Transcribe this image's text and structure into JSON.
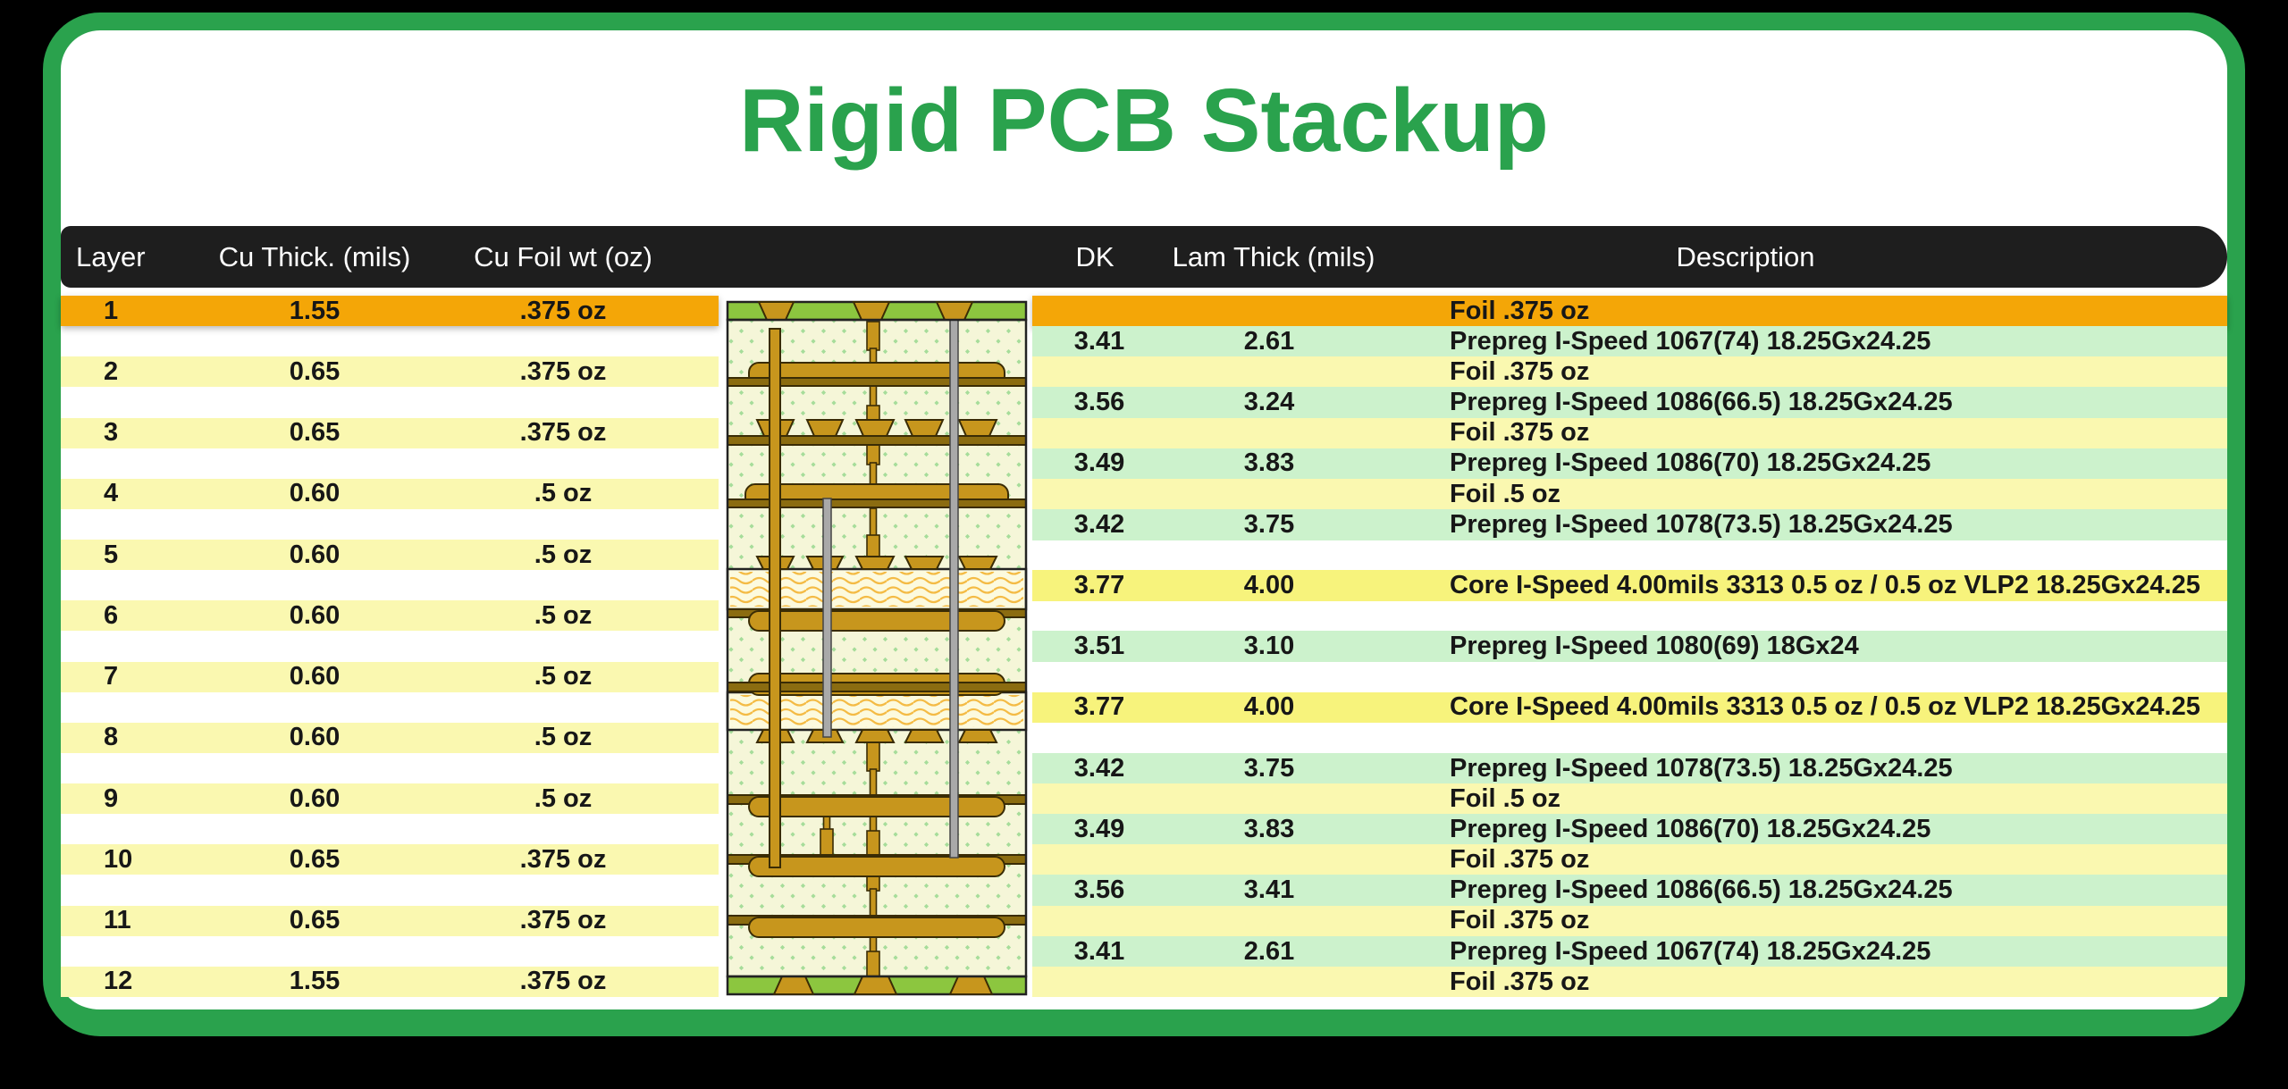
{
  "title": "Rigid PCB Stackup",
  "colors": {
    "background": "#000000",
    "card_border_green": "#2aa24d",
    "title_green": "#2aa24d",
    "header_bg": "#1e1e1e",
    "header_text": "#ffffff",
    "row_orange": "#f4a607",
    "row_yellow": "#faf8b0",
    "row_core_yellow": "#f7f37c",
    "row_green": "#ccf2cc",
    "text": "#171717"
  },
  "header": {
    "layer": "Layer",
    "cu_thick": "Cu Thick. (mils)",
    "cu_foil": "Cu Foil wt (oz)",
    "dk": "DK",
    "lam_thick": "Lam Thick (mils)",
    "description": "Description"
  },
  "left_table": {
    "rows": [
      {
        "layer": "1",
        "cu_thick": "1.55",
        "cu_foil": ".375 oz",
        "highlight": true
      },
      {
        "layer": "2",
        "cu_thick": "0.65",
        "cu_foil": ".375 oz",
        "highlight": false
      },
      {
        "layer": "3",
        "cu_thick": "0.65",
        "cu_foil": ".375 oz",
        "highlight": false
      },
      {
        "layer": "4",
        "cu_thick": "0.60",
        "cu_foil": ".5 oz",
        "highlight": false
      },
      {
        "layer": "5",
        "cu_thick": "0.60",
        "cu_foil": ".5 oz",
        "highlight": false
      },
      {
        "layer": "6",
        "cu_thick": "0.60",
        "cu_foil": ".5 oz",
        "highlight": false
      },
      {
        "layer": "7",
        "cu_thick": "0.60",
        "cu_foil": ".5 oz",
        "highlight": false
      },
      {
        "layer": "8",
        "cu_thick": "0.60",
        "cu_foil": ".5 oz",
        "highlight": false
      },
      {
        "layer": "9",
        "cu_thick": "0.60",
        "cu_foil": ".5 oz",
        "highlight": false
      },
      {
        "layer": "10",
        "cu_thick": "0.65",
        "cu_foil": ".375 oz",
        "highlight": false
      },
      {
        "layer": "11",
        "cu_thick": "0.65",
        "cu_foil": ".375 oz",
        "highlight": false
      },
      {
        "layer": "12",
        "cu_thick": "1.55",
        "cu_foil": ".375 oz",
        "highlight": false
      }
    ]
  },
  "right_table": {
    "rows": [
      {
        "type": "foil-top",
        "dk": "",
        "lam": "",
        "desc": "Foil .375 oz"
      },
      {
        "type": "prepreg",
        "dk": "3.41",
        "lam": "2.61",
        "desc": "Prepreg I-Speed 1067(74) 18.25Gx24.25"
      },
      {
        "type": "foil",
        "dk": "",
        "lam": "",
        "desc": "Foil .375 oz"
      },
      {
        "type": "prepreg",
        "dk": "3.56",
        "lam": "3.24",
        "desc": "Prepreg I-Speed 1086(66.5) 18.25Gx24.25"
      },
      {
        "type": "foil",
        "dk": "",
        "lam": "",
        "desc": "Foil .375 oz"
      },
      {
        "type": "prepreg",
        "dk": "3.49",
        "lam": "3.83",
        "desc": "Prepreg I-Speed 1086(70) 18.25Gx24.25"
      },
      {
        "type": "foil",
        "dk": "",
        "lam": "",
        "desc": "Foil .5 oz"
      },
      {
        "type": "prepreg",
        "dk": "3.42",
        "lam": "3.75",
        "desc": "Prepreg I-Speed 1078(73.5) 18.25Gx24.25"
      },
      {
        "type": "gap"
      },
      {
        "type": "core",
        "dk": "3.77",
        "lam": "4.00",
        "desc": "Core I-Speed 4.00mils 3313 0.5 oz / 0.5 oz VLP2 18.25Gx24.25"
      },
      {
        "type": "gap"
      },
      {
        "type": "prepreg",
        "dk": "3.51",
        "lam": "3.10",
        "desc": "Prepreg I-Speed 1080(69) 18Gx24"
      },
      {
        "type": "gap"
      },
      {
        "type": "core",
        "dk": "3.77",
        "lam": "4.00",
        "desc": "Core I-Speed 4.00mils 3313 0.5 oz / 0.5 oz VLP2 18.25Gx24.25"
      },
      {
        "type": "gap"
      },
      {
        "type": "prepreg",
        "dk": "3.42",
        "lam": "3.75",
        "desc": "Prepreg I-Speed 1078(73.5) 18.25Gx24.25"
      },
      {
        "type": "foil",
        "dk": "",
        "lam": "",
        "desc": "Foil .5 oz"
      },
      {
        "type": "prepreg",
        "dk": "3.49",
        "lam": "3.83",
        "desc": "Prepreg I-Speed 1086(70) 18.25Gx24.25"
      },
      {
        "type": "foil",
        "dk": "",
        "lam": "",
        "desc": "Foil .375 oz"
      },
      {
        "type": "prepreg",
        "dk": "3.56",
        "lam": "3.41",
        "desc": "Prepreg I-Speed 1086(66.5) 18.25Gx24.25"
      },
      {
        "type": "foil",
        "dk": "",
        "lam": "",
        "desc": "Foil .375 oz"
      },
      {
        "type": "prepreg",
        "dk": "3.41",
        "lam": "2.61",
        "desc": "Prepreg I-Speed 1067(74) 18.25Gx24.25"
      },
      {
        "type": "foil",
        "dk": "",
        "lam": "",
        "desc": "Foil .375 oz"
      }
    ]
  },
  "diagram": {
    "name": "pcb-cross-section",
    "solder_mask_color": "#8cc63f",
    "copper_color": "#c7961d",
    "prepreg_color": "#f5f6d8",
    "core_color": "#fcfade",
    "via_gray": "#a9a9a9"
  }
}
